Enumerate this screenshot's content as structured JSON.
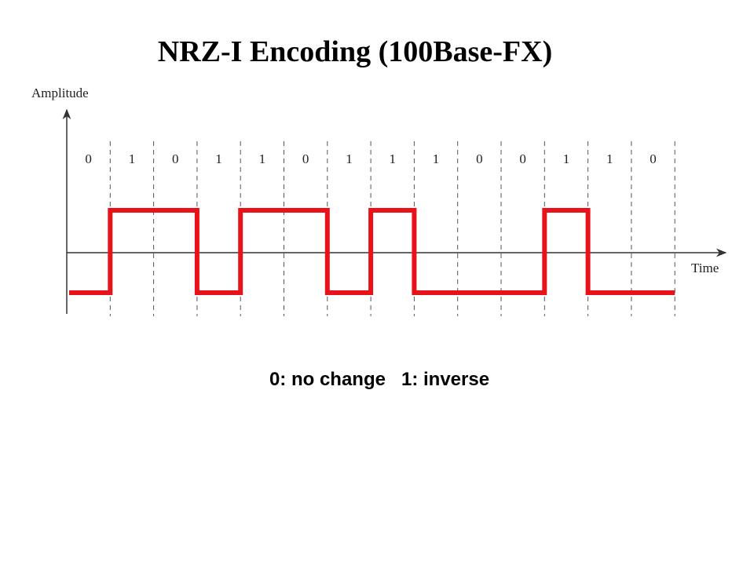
{
  "title": "NRZ-I Encoding (100Base-FX)",
  "y_axis_label": "Amplitude",
  "x_axis_label": "Time",
  "bits": [
    0,
    1,
    0,
    1,
    1,
    0,
    1,
    1,
    1,
    0,
    0,
    1,
    1,
    0
  ],
  "caption": "0: no change   1: inverse"
}
